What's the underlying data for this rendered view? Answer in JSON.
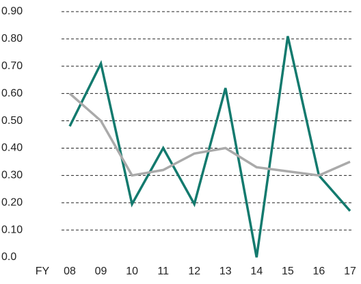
{
  "chart_data": {
    "type": "line",
    "x_label": "FY",
    "categories": [
      "08",
      "09",
      "10",
      "11",
      "12",
      "13",
      "14",
      "15",
      "16",
      "17"
    ],
    "series": [
      {
        "color": "#137a6e",
        "values": [
          0.48,
          0.71,
          0.195,
          0.4,
          0.195,
          0.62,
          0.0,
          0.81,
          0.3,
          0.17
        ]
      },
      {
        "color": "#aaaaaa",
        "values": [
          0.6,
          0.5,
          0.3,
          0.32,
          0.38,
          0.4,
          0.33,
          0.315,
          0.3,
          0.35
        ]
      }
    ],
    "ylim": [
      0,
      0.9
    ],
    "yticks": [
      {
        "value": 0,
        "label": "0.0"
      },
      {
        "value": 0.1,
        "label": "0.10"
      },
      {
        "value": 0.2,
        "label": "0.20"
      },
      {
        "value": 0.3,
        "label": "0.30"
      },
      {
        "value": 0.4,
        "label": "0.40"
      },
      {
        "value": 0.5,
        "label": "0.50"
      },
      {
        "value": 0.6,
        "label": "0.60"
      },
      {
        "value": 0.7,
        "label": "0.70"
      },
      {
        "value": 0.8,
        "label": "0.80"
      },
      {
        "value": 0.9,
        "label": "0.90"
      }
    ],
    "grid": true
  }
}
